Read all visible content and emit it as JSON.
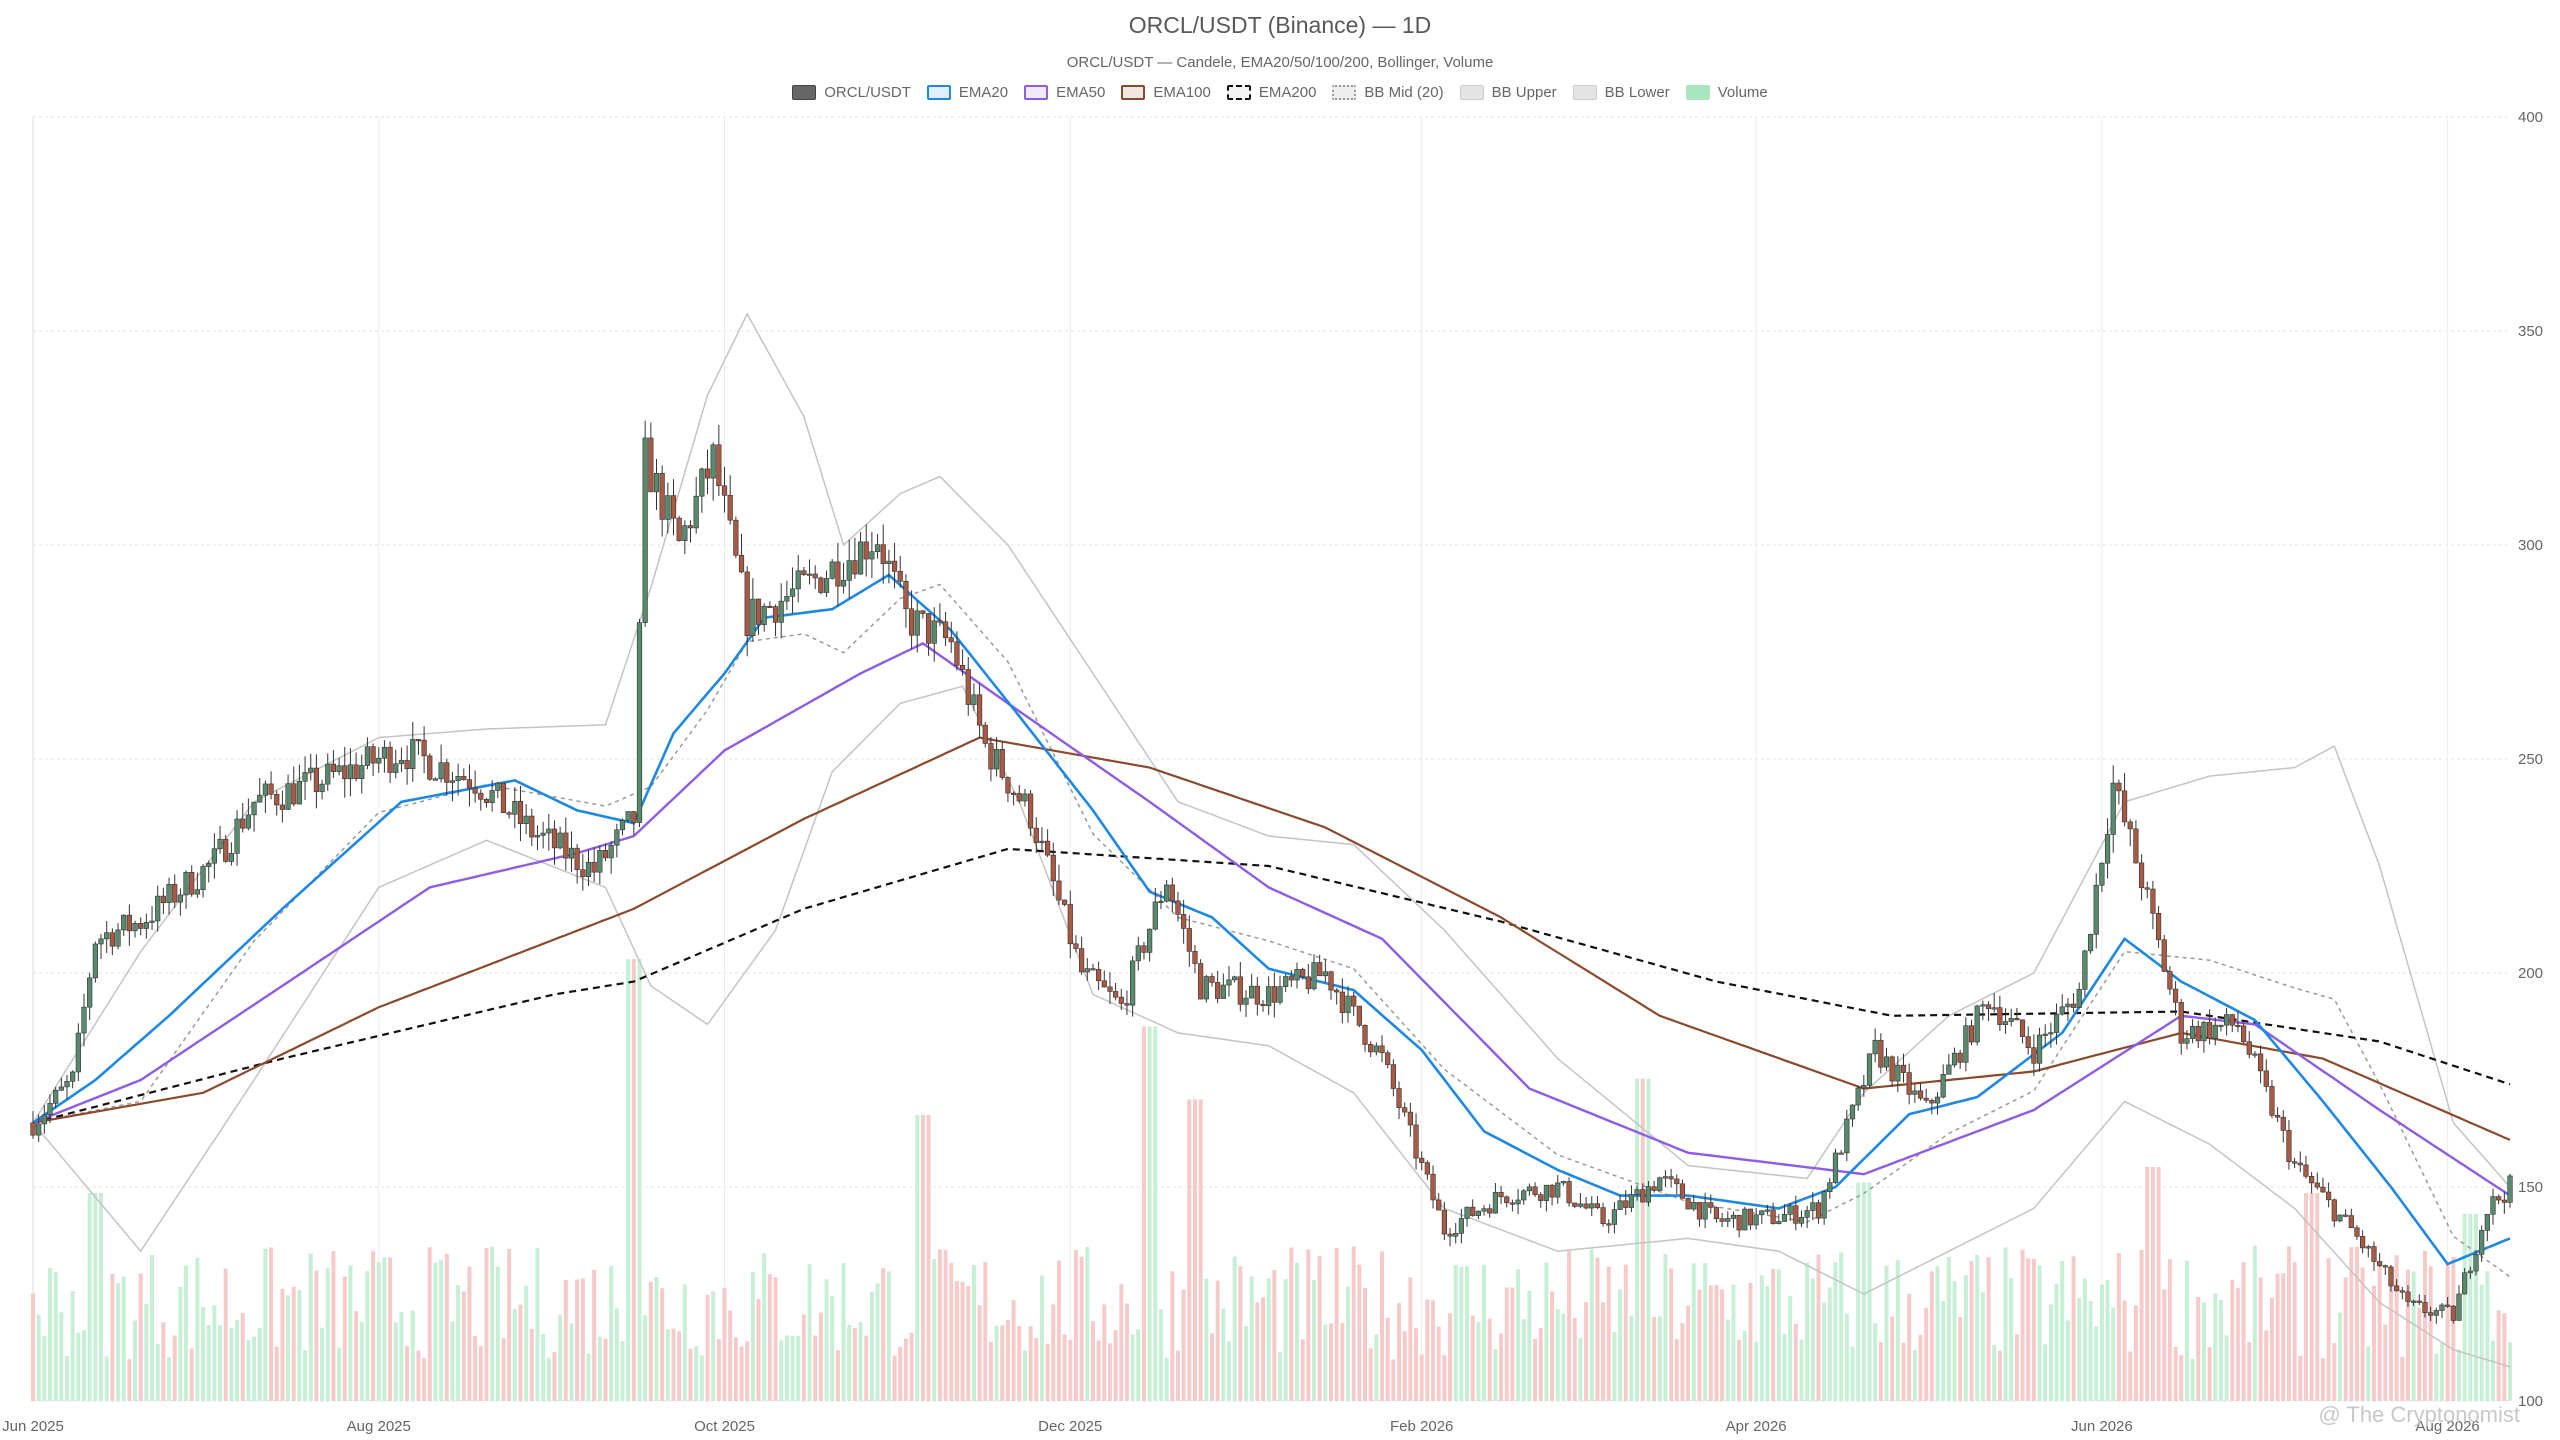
{
  "chart_data": {
    "type": "candlestick",
    "title": "ORCL/USDT (Binance) — 1D",
    "subtitle": "ORCL/USDT — Candele, EMA20/50/100/200, Bollinger, Volume",
    "ylim": [
      100,
      400
    ],
    "y_ticks": [
      100,
      150,
      200,
      250,
      300,
      350,
      400
    ],
    "x_ticks": [
      "Jun 2025",
      "Aug 2025",
      "Oct 2025",
      "Dec 2025",
      "Feb 2026",
      "Apr 2026",
      "Jun 2026",
      "Aug 2026"
    ],
    "x_range": [
      "2025-06-01",
      "2026-08-12"
    ],
    "grid": true,
    "legend_position": "top-center",
    "legend": [
      {
        "name": "ORCL/USDT",
        "color": "#666666",
        "style": "solid"
      },
      {
        "name": "EMA20",
        "color": "#1e88e5",
        "style": "solid"
      },
      {
        "name": "EMA50",
        "color": "#8e5ce6",
        "style": "solid"
      },
      {
        "name": "EMA100",
        "color": "#8b4a2b",
        "style": "solid"
      },
      {
        "name": "EMA200",
        "color": "#111111",
        "style": "dashed"
      },
      {
        "name": "BB Mid (20)",
        "color": "#999999",
        "style": "dotted"
      },
      {
        "name": "BB Upper",
        "color": "#bbbbbb",
        "style": "solid"
      },
      {
        "name": "BB Lower",
        "color": "#bbbbbb",
        "style": "solid"
      },
      {
        "name": "Volume",
        "color": "#a8e6c0",
        "style": "fill"
      }
    ],
    "colors": {
      "up": "#5a8a6e",
      "down": "#a85a45",
      "vol_up": "#c6efd6",
      "vol_down": "#f7caca"
    },
    "price_anchors": [
      [
        "2025-06-01",
        165
      ],
      [
        "2025-06-08",
        175
      ],
      [
        "2025-06-12",
        208
      ],
      [
        "2025-06-20",
        212
      ],
      [
        "2025-07-03",
        226
      ],
      [
        "2025-07-10",
        240
      ],
      [
        "2025-07-20",
        244
      ],
      [
        "2025-08-05",
        252
      ],
      [
        "2025-08-18",
        245
      ],
      [
        "2025-08-28",
        233
      ],
      [
        "2025-09-08",
        224
      ],
      [
        "2025-09-15",
        236
      ],
      [
        "2025-09-17",
        320
      ],
      [
        "2025-09-23",
        300
      ],
      [
        "2025-09-29",
        320
      ],
      [
        "2025-10-05",
        283
      ],
      [
        "2025-10-15",
        290
      ],
      [
        "2025-10-28",
        302
      ],
      [
        "2025-11-02",
        283
      ],
      [
        "2025-11-10",
        277
      ],
      [
        "2025-11-16",
        253
      ],
      [
        "2025-11-24",
        237
      ],
      [
        "2025-12-03",
        200
      ],
      [
        "2025-12-10",
        192
      ],
      [
        "2025-12-18",
        222
      ],
      [
        "2025-12-24",
        197
      ],
      [
        "2026-01-05",
        195
      ],
      [
        "2026-01-15",
        200
      ],
      [
        "2026-01-25",
        180
      ],
      [
        "2026-02-05",
        140
      ],
      [
        "2026-02-15",
        148
      ],
      [
        "2026-02-25",
        150
      ],
      [
        "2026-03-05",
        142
      ],
      [
        "2026-03-15",
        152
      ],
      [
        "2026-03-25",
        142
      ],
      [
        "2026-04-05",
        143
      ],
      [
        "2026-04-12",
        145
      ],
      [
        "2026-04-22",
        182
      ],
      [
        "2026-05-01",
        168
      ],
      [
        "2026-05-12",
        194
      ],
      [
        "2026-05-20",
        182
      ],
      [
        "2026-05-28",
        196
      ],
      [
        "2026-06-03",
        244
      ],
      [
        "2026-06-08",
        222
      ],
      [
        "2026-06-15",
        186
      ],
      [
        "2026-06-25",
        188
      ],
      [
        "2026-07-05",
        155
      ],
      [
        "2026-07-15",
        140
      ],
      [
        "2026-07-25",
        122
      ],
      [
        "2026-08-02",
        120
      ],
      [
        "2026-08-08",
        145
      ],
      [
        "2026-08-12",
        150
      ]
    ],
    "ema20": [
      [
        "2025-06-01",
        165
      ],
      [
        "2025-06-12",
        175
      ],
      [
        "2025-06-25",
        190
      ],
      [
        "2025-07-15",
        215
      ],
      [
        "2025-08-05",
        240
      ],
      [
        "2025-08-25",
        245
      ],
      [
        "2025-09-05",
        238
      ],
      [
        "2025-09-15",
        235
      ],
      [
        "2025-09-22",
        256
      ],
      [
        "2025-10-01",
        270
      ],
      [
        "2025-10-08",
        283
      ],
      [
        "2025-10-20",
        285
      ],
      [
        "2025-10-30",
        293
      ],
      [
        "2025-11-10",
        280
      ],
      [
        "2025-11-22",
        260
      ],
      [
        "2025-12-05",
        238
      ],
      [
        "2025-12-15",
        219
      ],
      [
        "2025-12-26",
        213
      ],
      [
        "2026-01-05",
        201
      ],
      [
        "2026-01-20",
        196
      ],
      [
        "2026-02-01",
        182
      ],
      [
        "2026-02-12",
        163
      ],
      [
        "2026-02-25",
        154
      ],
      [
        "2026-03-08",
        148
      ],
      [
        "2026-03-20",
        148
      ],
      [
        "2026-04-05",
        145
      ],
      [
        "2026-04-15",
        150
      ],
      [
        "2026-04-28",
        167
      ],
      [
        "2026-05-10",
        171
      ],
      [
        "2026-05-25",
        186
      ],
      [
        "2026-06-05",
        208
      ],
      [
        "2026-06-15",
        198
      ],
      [
        "2026-06-28",
        189
      ],
      [
        "2026-07-10",
        170
      ],
      [
        "2026-07-22",
        150
      ],
      [
        "2026-08-01",
        132
      ],
      [
        "2026-08-12",
        138
      ]
    ],
    "ema50": [
      [
        "2025-06-01",
        165
      ],
      [
        "2025-06-20",
        175
      ],
      [
        "2025-07-15",
        197
      ],
      [
        "2025-08-10",
        220
      ],
      [
        "2025-09-05",
        228
      ],
      [
        "2025-09-15",
        232
      ],
      [
        "2025-10-01",
        252
      ],
      [
        "2025-10-25",
        270
      ],
      [
        "2025-11-05",
        277
      ],
      [
        "2025-11-20",
        263
      ],
      [
        "2025-12-15",
        240
      ],
      [
        "2026-01-05",
        220
      ],
      [
        "2026-01-25",
        208
      ],
      [
        "2026-02-20",
        173
      ],
      [
        "2026-03-20",
        158
      ],
      [
        "2026-04-20",
        153
      ],
      [
        "2026-05-20",
        168
      ],
      [
        "2026-06-15",
        190
      ],
      [
        "2026-06-28",
        188
      ],
      [
        "2026-07-20",
        168
      ],
      [
        "2026-08-12",
        148
      ]
    ],
    "ema100": [
      [
        "2025-06-01",
        165
      ],
      [
        "2025-07-01",
        172
      ],
      [
        "2025-08-01",
        192
      ],
      [
        "2025-09-15",
        215
      ],
      [
        "2025-10-15",
        236
      ],
      [
        "2025-11-15",
        255
      ],
      [
        "2025-12-15",
        248
      ],
      [
        "2026-01-15",
        234
      ],
      [
        "2026-02-15",
        213
      ],
      [
        "2026-03-15",
        190
      ],
      [
        "2026-04-20",
        173
      ],
      [
        "2026-05-20",
        177
      ],
      [
        "2026-06-15",
        186
      ],
      [
        "2026-07-10",
        180
      ],
      [
        "2026-08-12",
        161
      ]
    ],
    "ema200": [
      [
        "2025-06-01",
        165
      ],
      [
        "2025-07-15",
        180
      ],
      [
        "2025-09-01",
        195
      ],
      [
        "2025-09-15",
        198
      ],
      [
        "2025-10-15",
        215
      ],
      [
        "2025-11-20",
        229
      ],
      [
        "2026-01-05",
        225
      ],
      [
        "2026-02-15",
        212
      ],
      [
        "2026-03-25",
        198
      ],
      [
        "2026-04-25",
        190
      ],
      [
        "2026-06-15",
        191
      ],
      [
        "2026-07-20",
        184
      ],
      [
        "2026-08-12",
        174
      ]
    ],
    "bb_upper": [
      [
        "2025-06-01",
        165
      ],
      [
        "2025-06-20",
        205
      ],
      [
        "2025-07-10",
        240
      ],
      [
        "2025-08-01",
        255
      ],
      [
        "2025-08-20",
        257
      ],
      [
        "2025-09-10",
        258
      ],
      [
        "2025-09-18",
        290
      ],
      [
        "2025-09-28",
        335
      ],
      [
        "2025-10-05",
        354
      ],
      [
        "2025-10-15",
        330
      ],
      [
        "2025-10-22",
        300
      ],
      [
        "2025-11-01",
        312
      ],
      [
        "2025-11-08",
        316
      ],
      [
        "2025-11-20",
        300
      ],
      [
        "2025-12-05",
        270
      ],
      [
        "2025-12-20",
        240
      ],
      [
        "2026-01-05",
        232
      ],
      [
        "2026-01-20",
        230
      ],
      [
        "2026-02-05",
        210
      ],
      [
        "2026-02-25",
        180
      ],
      [
        "2026-03-20",
        155
      ],
      [
        "2026-04-10",
        152
      ],
      [
        "2026-04-20",
        172
      ],
      [
        "2026-05-05",
        190
      ],
      [
        "2026-05-20",
        200
      ],
      [
        "2026-06-05",
        240
      ],
      [
        "2026-06-20",
        246
      ],
      [
        "2026-07-05",
        248
      ],
      [
        "2026-07-12",
        253
      ],
      [
        "2026-07-20",
        225
      ],
      [
        "2026-08-02",
        165
      ],
      [
        "2026-08-12",
        150
      ]
    ],
    "bb_lower": [
      [
        "2025-06-01",
        165
      ],
      [
        "2025-06-20",
        135
      ],
      [
        "2025-07-10",
        175
      ],
      [
        "2025-08-01",
        220
      ],
      [
        "2025-08-20",
        231
      ],
      [
        "2025-09-10",
        220
      ],
      [
        "2025-09-18",
        197
      ],
      [
        "2025-09-28",
        188
      ],
      [
        "2025-10-10",
        210
      ],
      [
        "2025-10-20",
        247
      ],
      [
        "2025-11-01",
        263
      ],
      [
        "2025-11-12",
        267
      ],
      [
        "2025-11-22",
        240
      ],
      [
        "2025-12-05",
        195
      ],
      [
        "2025-12-20",
        186
      ],
      [
        "2026-01-05",
        183
      ],
      [
        "2026-01-20",
        172
      ],
      [
        "2026-02-05",
        145
      ],
      [
        "2026-02-25",
        135
      ],
      [
        "2026-03-20",
        138
      ],
      [
        "2026-04-05",
        135
      ],
      [
        "2026-04-20",
        125
      ],
      [
        "2026-05-05",
        135
      ],
      [
        "2026-05-20",
        145
      ],
      [
        "2026-06-05",
        170
      ],
      [
        "2026-06-20",
        160
      ],
      [
        "2026-07-05",
        145
      ],
      [
        "2026-07-20",
        123
      ],
      [
        "2026-08-02",
        112
      ],
      [
        "2026-08-12",
        108
      ]
    ],
    "volume_spikes": [
      [
        "2025-06-12",
        0.4
      ],
      [
        "2025-09-15",
        0.85
      ],
      [
        "2025-11-05",
        0.55
      ],
      [
        "2025-12-15",
        0.72
      ],
      [
        "2025-12-23",
        0.58
      ],
      [
        "2026-03-12",
        0.62
      ],
      [
        "2026-04-20",
        0.42
      ],
      [
        "2026-06-10",
        0.45
      ],
      [
        "2026-07-08",
        0.4
      ],
      [
        "2026-08-05",
        0.36
      ]
    ]
  },
  "watermark": "@ The Cryptonomist"
}
